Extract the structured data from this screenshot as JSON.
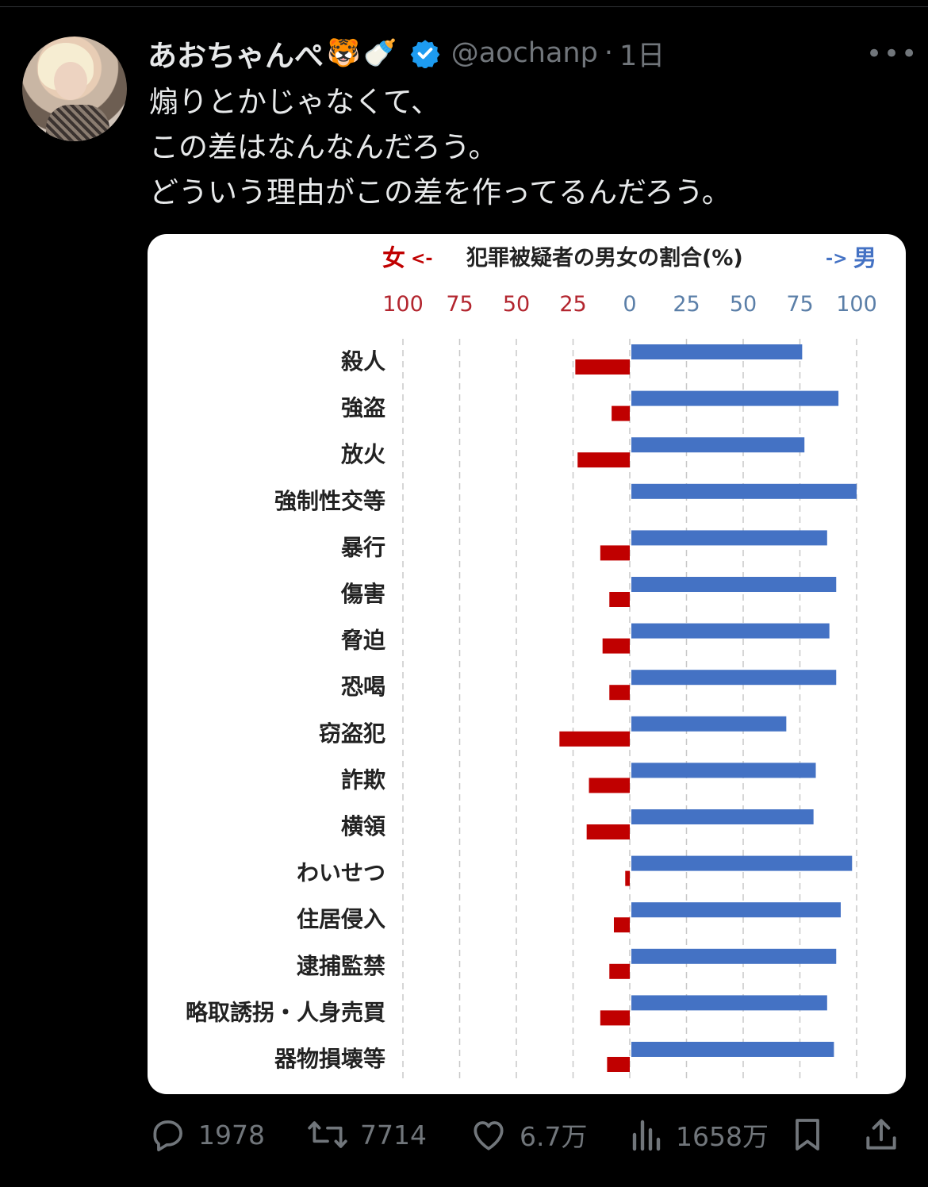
{
  "tweet": {
    "display_name": "あおちゃんぺ",
    "name_emojis": [
      "🐯",
      "🍼"
    ],
    "handle": "@aochanp",
    "separator": "·",
    "time": "1日",
    "more": "•••",
    "text_lines": [
      "煽りとかじゃなくて、",
      "この差はなんなんだろう。",
      "どういう理由がこの差を作ってるんだろう。"
    ]
  },
  "actions": {
    "replies": "1978",
    "retweets": "7714",
    "likes": "6.7万",
    "views": "1658万"
  },
  "colors": {
    "female": "#c00000",
    "male": "#4472c4",
    "female_tick": "#b3262f",
    "male_tick": "#5b7fa8",
    "muted": "#71767b",
    "verified": "#1d9bf0"
  },
  "chart_data": {
    "type": "bar",
    "title": "犯罪被疑者の男女の割合(%)",
    "left_label": "女",
    "left_arrow": "<-",
    "right_arrow": "->",
    "right_label": "男",
    "female_ticks": [
      "100",
      "75",
      "50",
      "25"
    ],
    "male_ticks": [
      "0",
      "25",
      "50",
      "75",
      "100"
    ],
    "xlim": [
      -100,
      100
    ],
    "categories": [
      "殺人",
      "強盗",
      "放火",
      "強制性交等",
      "暴行",
      "傷害",
      "脅迫",
      "恐喝",
      "窃盗犯",
      "詐欺",
      "横領",
      "わいせつ",
      "住居侵入",
      "逮捕監禁",
      "略取誘拐・人身売買",
      "器物損壊等"
    ],
    "series": [
      {
        "name": "女",
        "values": [
          24,
          8,
          23,
          0,
          13,
          9,
          12,
          9,
          31,
          18,
          19,
          2,
          7,
          9,
          13,
          10
        ]
      },
      {
        "name": "男",
        "values": [
          76,
          92,
          77,
          100,
          87,
          91,
          88,
          91,
          69,
          82,
          81,
          98,
          93,
          91,
          87,
          90
        ]
      }
    ]
  }
}
